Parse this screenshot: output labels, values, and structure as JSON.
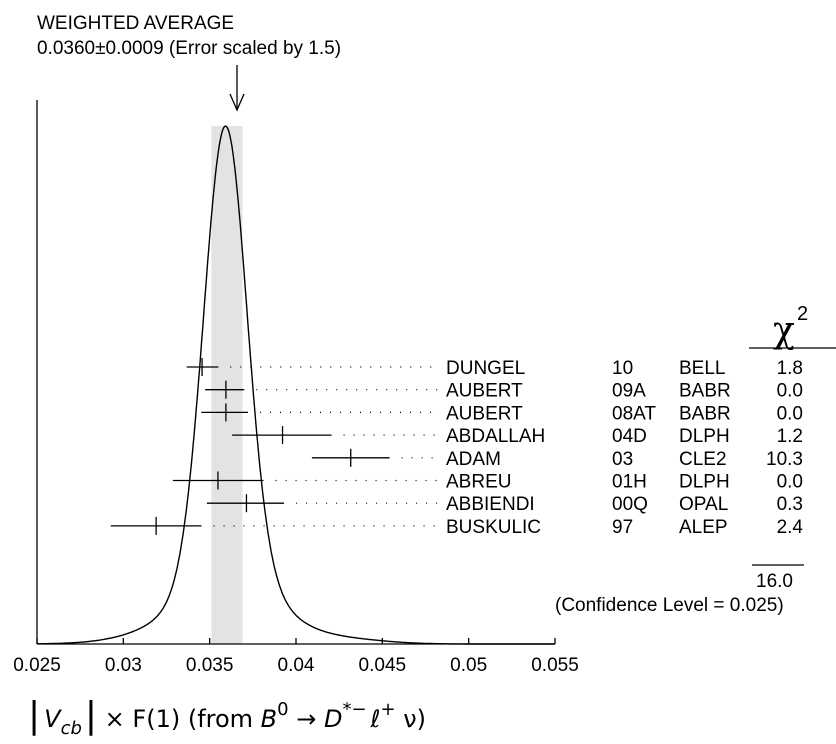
{
  "chart_data": {
    "type": "ideogram",
    "average": {
      "heading": "WEIGHTED AVERAGE",
      "value_text": "0.0360±0.0009 (Error scaled by 1.5)",
      "value": 0.036,
      "band": [
        0.0351,
        0.0369
      ]
    },
    "x_axis": {
      "range": [
        0.025,
        0.055
      ],
      "ticks": [
        0.025,
        0.03,
        0.035,
        0.04,
        0.045,
        0.05,
        0.055
      ],
      "tick_labels": [
        "0.025",
        "0.03",
        "0.035",
        "0.04",
        "0.045",
        "0.05",
        "0.055"
      ],
      "label": {
        "abs_open": "|",
        "V": "V",
        "cb": "cb",
        "abs_close": "|",
        "times_F1": " × F(1) (from ",
        "B": "B",
        "B_sup": "0",
        "arrow": " → ",
        "D": "D",
        "D_sup": "*−",
        "l": "ℓ",
        "l_sup": "+",
        "nu": " ν)"
      }
    },
    "chi2_header": {
      "symbol": "χ",
      "power": "2"
    },
    "measurements": [
      {
        "author": "DUNGEL",
        "year": "10",
        "exp": "BELL",
        "chi2": "1.8",
        "value": 0.03456,
        "lo": 0.03367,
        "hi": 0.0355
      },
      {
        "author": "AUBERT",
        "year": "09A",
        "exp": "BABR",
        "chi2": "0.0",
        "value": 0.03594,
        "lo": 0.03474,
        "hi": 0.037
      },
      {
        "author": "AUBERT",
        "year": "08AT",
        "exp": "BABR",
        "chi2": "0.0",
        "value": 0.03594,
        "lo": 0.03451,
        "hi": 0.03722
      },
      {
        "author": "ABDALLAH",
        "year": "04D",
        "exp": "DLPH",
        "chi2": "1.2",
        "value": 0.03922,
        "lo": 0.0363,
        "hi": 0.04206
      },
      {
        "author": "ADAM",
        "year": "03",
        "exp": "CLE2",
        "chi2": "10.3",
        "value": 0.04317,
        "lo": 0.04092,
        "hi": 0.04542
      },
      {
        "author": "ABREU",
        "year": "01H",
        "exp": "DLPH",
        "chi2": "0.0",
        "value": 0.03548,
        "lo": 0.03287,
        "hi": 0.03812
      },
      {
        "author": "ABBIENDI",
        "year": "00Q",
        "exp": "OPAL",
        "chi2": "0.3",
        "value": 0.03713,
        "lo": 0.03484,
        "hi": 0.03931
      },
      {
        "author": "BUSKULIC",
        "year": "97",
        "exp": "ALEP",
        "chi2": "2.4",
        "value": 0.0319,
        "lo": 0.02927,
        "hi": 0.03453
      }
    ],
    "chi2_total": "16.0",
    "confidence_text": "(Confidence Level = 0.025)"
  }
}
